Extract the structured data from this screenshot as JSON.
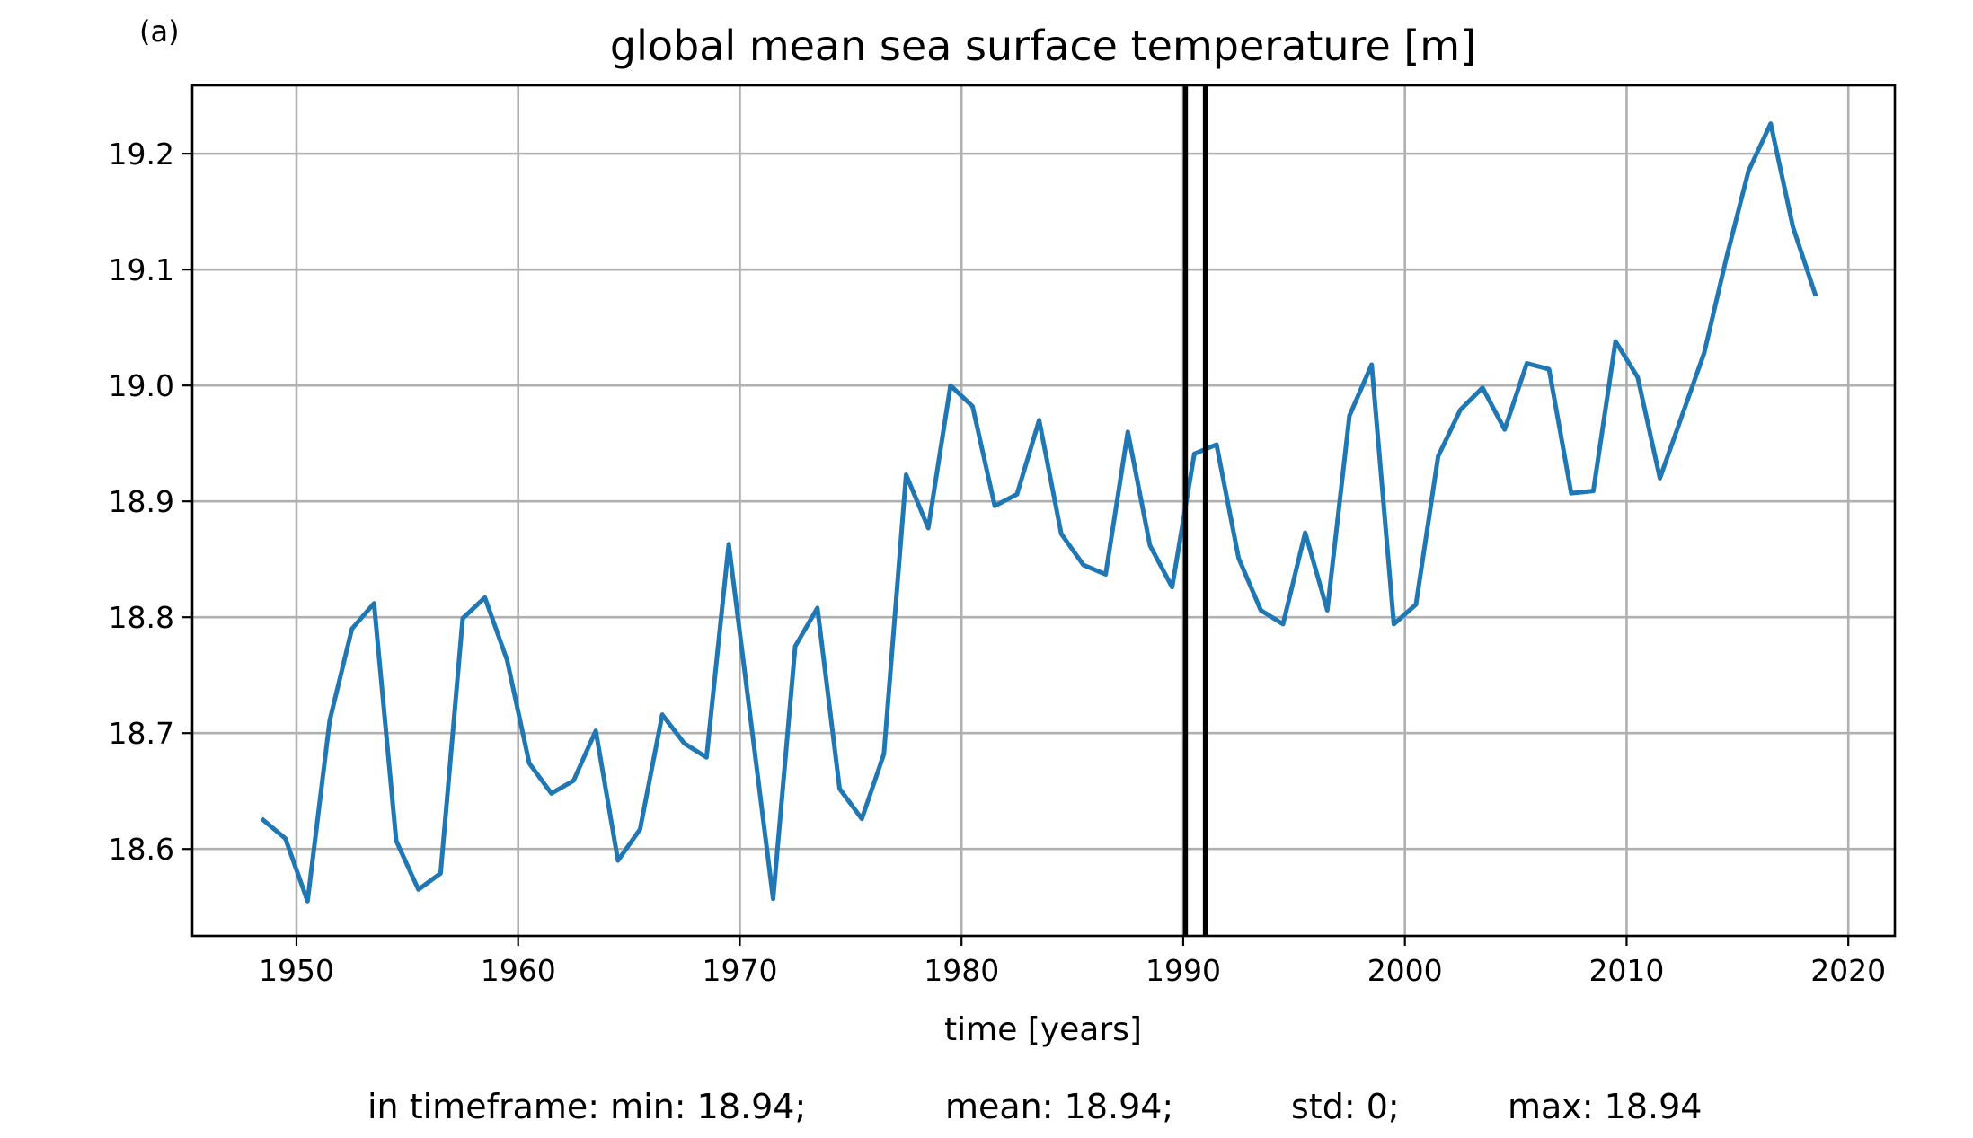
{
  "panel_label": "(a)",
  "footer": {
    "min": "in timeframe: min: 18.94;",
    "mean": "mean: 18.94;",
    "std": "std: 0;",
    "max": "max: 18.94"
  },
  "chart_data": {
    "type": "line",
    "title": "global mean sea surface temperature [m]",
    "xlabel": "time [years]",
    "ylabel": "",
    "xlim": [
      1945.3,
      2022.1
    ],
    "ylim": [
      18.525,
      19.259
    ],
    "xticks": [
      1950,
      1960,
      1970,
      1980,
      1990,
      2000,
      2010,
      2020
    ],
    "xtick_labels": [
      "1950",
      "1960",
      "1970",
      "1980",
      "1990",
      "2000",
      "2010",
      "2020"
    ],
    "yticks": [
      18.6,
      18.7,
      18.8,
      18.9,
      19.0,
      19.1,
      19.2
    ],
    "ytick_labels": [
      "18.6",
      "18.7",
      "18.8",
      "18.9",
      "19.0",
      "19.1",
      "19.2"
    ],
    "grid": true,
    "vertical_lines": [
      1990.1,
      1991.0
    ],
    "series": [
      {
        "color": "#1f77b4",
        "x": [
          1948.5,
          1949.5,
          1950.5,
          1951.5,
          1952.5,
          1953.5,
          1954.5,
          1955.5,
          1956.5,
          1957.5,
          1958.5,
          1959.5,
          1960.5,
          1961.5,
          1962.5,
          1963.5,
          1964.5,
          1965.5,
          1966.5,
          1967.5,
          1968.5,
          1969.5,
          1970.5,
          1971.5,
          1972.5,
          1973.5,
          1974.5,
          1975.5,
          1976.5,
          1977.5,
          1978.5,
          1979.5,
          1980.5,
          1981.5,
          1982.5,
          1983.5,
          1984.5,
          1985.5,
          1986.5,
          1987.5,
          1988.5,
          1989.5,
          1990.5,
          1991.5,
          1992.5,
          1993.5,
          1994.5,
          1995.5,
          1996.5,
          1997.5,
          1998.5,
          1999.5,
          2000.5,
          2001.5,
          2002.5,
          2003.5,
          2004.5,
          2005.5,
          2006.5,
          2007.5,
          2008.5,
          2009.5,
          2010.5,
          2011.5,
          2012.5,
          2013.5,
          2014.5,
          2015.5,
          2016.5,
          2017.5,
          2018.5
        ],
        "y": [
          18.625,
          18.609,
          18.555,
          18.711,
          18.79,
          18.812,
          18.607,
          18.565,
          18.579,
          18.799,
          18.817,
          18.763,
          18.674,
          18.648,
          18.659,
          18.702,
          18.59,
          18.617,
          18.716,
          18.691,
          18.679,
          18.863,
          18.71,
          18.557,
          18.775,
          18.808,
          18.652,
          18.626,
          18.682,
          18.923,
          18.877,
          19.0,
          18.982,
          18.896,
          18.906,
          18.97,
          18.872,
          18.845,
          18.837,
          18.96,
          18.862,
          18.826,
          18.941,
          18.949,
          18.851,
          18.806,
          18.794,
          18.873,
          18.806,
          18.974,
          19.018,
          18.794,
          18.811,
          18.939,
          18.979,
          18.998,
          18.962,
          19.019,
          19.014,
          18.907,
          18.909,
          19.038,
          19.007,
          18.92,
          18.974,
          19.028,
          19.11,
          19.185,
          19.226,
          19.137,
          19.079
        ]
      }
    ]
  }
}
